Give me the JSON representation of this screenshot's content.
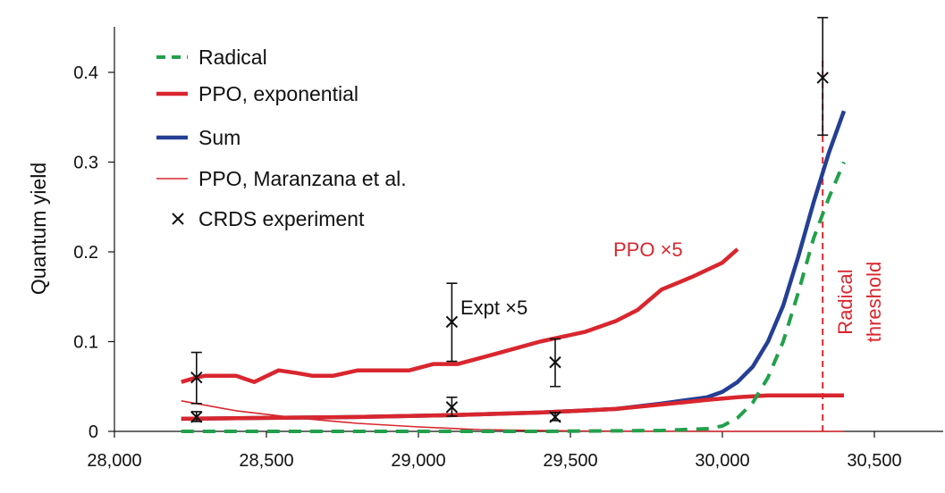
{
  "chart_data": {
    "type": "line",
    "title": "",
    "xlabel": "",
    "ylabel": "Quantum yield",
    "xlim": [
      28000,
      30700
    ],
    "ylim": [
      0,
      0.45
    ],
    "xticks": [
      28000,
      28500,
      29000,
      29500,
      30000,
      30500
    ],
    "xtick_labels": [
      "28,000",
      "28,500",
      "29,000",
      "29,500",
      "30,000",
      "30,500"
    ],
    "yticks": [
      0,
      0.1,
      0.2,
      0.3,
      0.4
    ],
    "ytick_labels": [
      "0",
      "0.1",
      "0.2",
      "0.3",
      "0.4"
    ],
    "grid": false,
    "legend_position": "top-left",
    "colors": {
      "radical": "#22a04b",
      "ppo": "#d9262e",
      "sum": "#243f94",
      "expt": "#111111",
      "threshold": "#d9262e"
    },
    "series": [
      {
        "name": "Radical",
        "key": "radical",
        "style": "dashed",
        "x": [
          28220,
          28600,
          29000,
          29400,
          29800,
          29950,
          30000,
          30050,
          30100,
          30150,
          30200,
          30250,
          30300,
          30350,
          30400
        ],
        "y": [
          0.0,
          0.0,
          0.0,
          0.0,
          0.001,
          0.003,
          0.006,
          0.015,
          0.032,
          0.06,
          0.1,
          0.155,
          0.215,
          0.26,
          0.3
        ]
      },
      {
        "name": "PPO, exponential",
        "key": "ppo_exp",
        "style": "solid-thick",
        "x": [
          28220,
          28500,
          28800,
          29100,
          29400,
          29650,
          29800,
          29950,
          30050,
          30100,
          30150,
          30200,
          30300,
          30400
        ],
        "y": [
          0.014,
          0.015,
          0.016,
          0.018,
          0.021,
          0.025,
          0.03,
          0.035,
          0.038,
          0.039,
          0.04,
          0.04,
          0.04,
          0.04
        ]
      },
      {
        "name": "Sum",
        "key": "sum",
        "style": "solid-thick",
        "x": [
          28220,
          28500,
          28800,
          29100,
          29400,
          29650,
          29800,
          29950,
          30000,
          30050,
          30100,
          30150,
          30200,
          30250,
          30300,
          30350,
          30400
        ],
        "y": [
          0.014,
          0.015,
          0.016,
          0.018,
          0.021,
          0.025,
          0.031,
          0.038,
          0.044,
          0.055,
          0.072,
          0.1,
          0.14,
          0.195,
          0.255,
          0.31,
          0.357
        ]
      },
      {
        "name": "PPO, Maranzana et al.",
        "key": "ppo_mar",
        "style": "solid-thin",
        "x": [
          28220,
          28400,
          28600,
          28800,
          29000,
          29200,
          29500,
          30000,
          30400
        ],
        "y": [
          0.034,
          0.023,
          0.015,
          0.009,
          0.005,
          0.002,
          0.0005,
          0.0,
          0.0
        ]
      },
      {
        "name": "PPO ×5",
        "key": "ppo_x5",
        "style": "solid-thick",
        "x": [
          28220,
          28270,
          28300,
          28400,
          28460,
          28540,
          28600,
          28650,
          28720,
          28800,
          28880,
          28970,
          29050,
          29130,
          29250,
          29400,
          29550,
          29650,
          29720,
          29800,
          29900,
          30000,
          30050
        ],
        "y": [
          0.055,
          0.06,
          0.062,
          0.062,
          0.055,
          0.068,
          0.065,
          0.062,
          0.062,
          0.068,
          0.068,
          0.068,
          0.075,
          0.075,
          0.086,
          0.1,
          0.111,
          0.123,
          0.135,
          0.158,
          0.172,
          0.188,
          0.203
        ]
      }
    ],
    "experiment": {
      "name": "CRDS experiment",
      "points": [
        {
          "x": 28270,
          "y": 0.016,
          "err_low": 0.011,
          "err_high": 0.022
        },
        {
          "x": 29110,
          "y": 0.027,
          "err_low": 0.017,
          "err_high": 0.038
        },
        {
          "x": 29450,
          "y": 0.016,
          "err_low": 0.012,
          "err_high": 0.021
        },
        {
          "x": 30330,
          "y": 0.394,
          "err_low": 0.33,
          "err_high": 0.461
        }
      ]
    },
    "experiment_x5": {
      "label": "Expt ×5",
      "points": [
        {
          "x": 28270,
          "y": 0.06,
          "err_low": 0.031,
          "err_high": 0.088
        },
        {
          "x": 29110,
          "y": 0.122,
          "err_low": 0.078,
          "err_high": 0.165
        },
        {
          "x": 29450,
          "y": 0.077,
          "err_low": 0.05,
          "err_high": 0.103
        }
      ]
    },
    "threshold": {
      "x": 30330,
      "label_line1": "Radical",
      "label_line2": "threshold"
    },
    "annotations": {
      "ppo_x5": "PPO ×5",
      "expt_x5": "Expt ×5"
    },
    "legend": [
      {
        "key": "radical",
        "label": "Radical"
      },
      {
        "key": "ppo_exp",
        "label": "PPO, exponential"
      },
      {
        "key": "sum",
        "label": "Sum"
      },
      {
        "key": "ppo_mar",
        "label": "PPO, Maranzana et al."
      },
      {
        "key": "expt",
        "label": "CRDS experiment"
      }
    ]
  }
}
